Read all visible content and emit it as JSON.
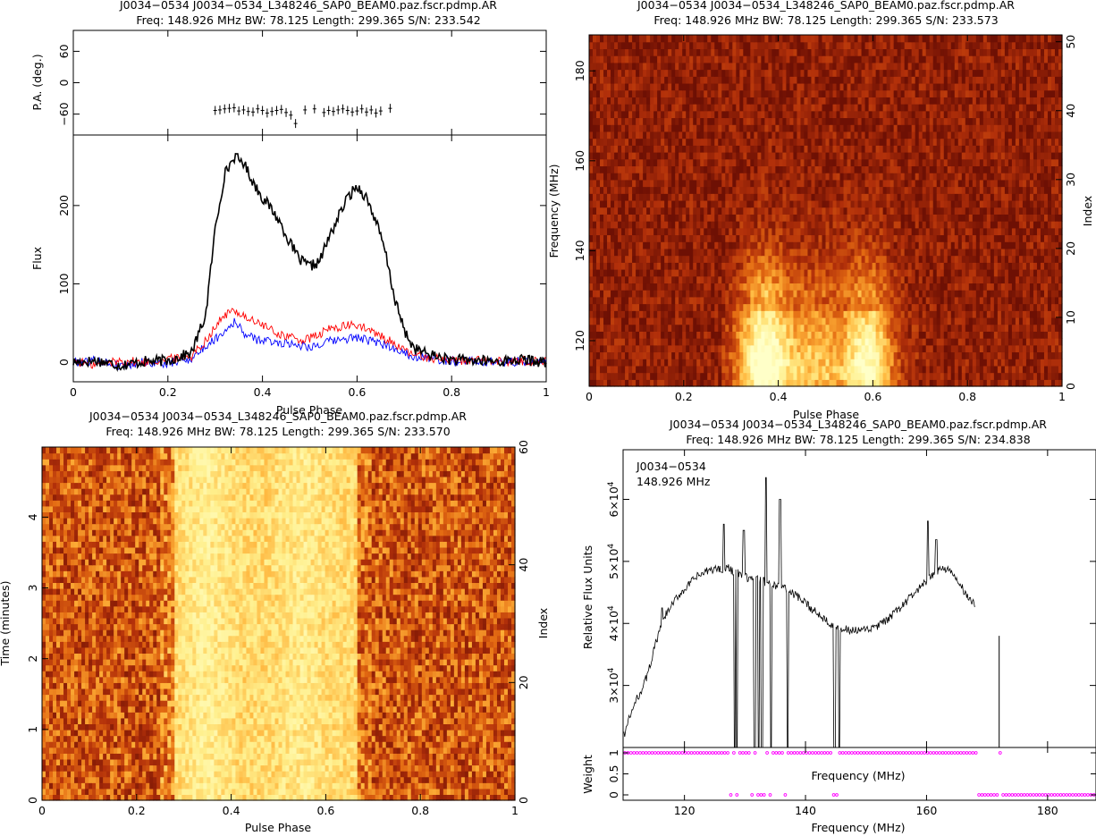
{
  "chart_data": [
    {
      "type": "line",
      "title": "J0034−0534  J0034−0534_L348246_SAP0_BEAM0.paz.fscr.pdmp.AR",
      "subtitle": "Freq:  148.926  MHz  BW:  78.125  Length:  299.365  S/N:  233.542",
      "xlabel": "Pulse Phase",
      "xlim": [
        0,
        1
      ],
      "x_ticks": [
        "0",
        "0.2",
        "0.4",
        "0.6",
        "0.8",
        "1"
      ],
      "pa_panel": {
        "ylabel": "P.A. (deg.)",
        "ylim": [
          -100,
          100
        ],
        "y_ticks": [
          "−60",
          "0",
          "60"
        ],
        "x": [
          0.3,
          0.31,
          0.32,
          0.33,
          0.34,
          0.35,
          0.36,
          0.37,
          0.38,
          0.39,
          0.4,
          0.41,
          0.42,
          0.43,
          0.44,
          0.45,
          0.46,
          0.47,
          0.49,
          0.51,
          0.53,
          0.54,
          0.55,
          0.56,
          0.57,
          0.58,
          0.59,
          0.6,
          0.61,
          0.62,
          0.63,
          0.64,
          0.65,
          0.67
        ],
        "values": [
          -53,
          -52,
          -50,
          -49,
          -48,
          -54,
          -52,
          -55,
          -56,
          -50,
          -53,
          -58,
          -55,
          -53,
          -51,
          -57,
          -62,
          -78,
          -52,
          -50,
          -57,
          -53,
          -55,
          -52,
          -50,
          -53,
          -56,
          -54,
          -50,
          -56,
          -52,
          -58,
          -54,
          -49
        ]
      },
      "flux_panel": {
        "ylabel": "Flux",
        "ylim": [
          -25,
          290
        ],
        "y_ticks": [
          "0",
          "100",
          "200"
        ],
        "x": [
          0,
          0.05,
          0.1,
          0.15,
          0.2,
          0.25,
          0.28,
          0.3,
          0.32,
          0.34,
          0.36,
          0.38,
          0.4,
          0.42,
          0.44,
          0.46,
          0.48,
          0.5,
          0.52,
          0.54,
          0.56,
          0.58,
          0.6,
          0.62,
          0.64,
          0.66,
          0.68,
          0.7,
          0.72,
          0.75,
          0.8,
          0.85,
          0.9,
          0.95,
          1
        ],
        "series": [
          {
            "color": "#000000",
            "values": [
              0,
              2,
              -4,
              1,
              2,
              12,
              60,
              170,
              240,
              262,
              255,
              230,
              210,
              195,
              175,
              150,
              130,
              122,
              128,
              158,
              185,
              210,
              225,
              210,
              180,
              140,
              80,
              40,
              18,
              10,
              3,
              2,
              1,
              3,
              0
            ]
          },
          {
            "color": "#ff0000",
            "values": [
              1,
              -3,
              2,
              0,
              4,
              8,
              28,
              45,
              60,
              66,
              60,
              52,
              48,
              40,
              35,
              32,
              28,
              30,
              35,
              42,
              45,
              46,
              48,
              42,
              36,
              30,
              24,
              14,
              10,
              6,
              3,
              2,
              1,
              2,
              1
            ]
          },
          {
            "color": "#0000ff",
            "values": [
              0,
              2,
              -5,
              0,
              -2,
              5,
              20,
              30,
              40,
              52,
              38,
              30,
              28,
              26,
              25,
              24,
              22,
              20,
              22,
              26,
              28,
              30,
              32,
              28,
              25,
              22,
              18,
              12,
              8,
              5,
              2,
              1,
              0,
              1,
              0
            ]
          }
        ]
      }
    },
    {
      "type": "heatmap",
      "title": "J0034−0534  J0034−0534_L348246_SAP0_BEAM0.paz.fscr.pdmp.AR",
      "subtitle": "Freq:  148.926  MHz  BW:  78.125  Length:  299.365  S/N:  233.573",
      "xlabel": "Pulse Phase",
      "ylabel": "Frequency (MHz)",
      "ylabel_right": "Index",
      "xlim": [
        0,
        1
      ],
      "ylim": [
        109.86,
        188
      ],
      "y_right_lim": [
        0,
        51
      ],
      "x_ticks": [
        "0",
        "0.2",
        "0.4",
        "0.6",
        "0.8",
        "1"
      ],
      "y_ticks": [
        "120",
        "140",
        "160",
        "180"
      ],
      "y_right_ticks": [
        "0",
        "10",
        "20",
        "30",
        "40",
        "50"
      ],
      "colormap": [
        "#6e1004",
        "#b2300a",
        "#e36a12",
        "#ffb43a",
        "#ffef8c",
        "#ffffc8"
      ]
    },
    {
      "type": "heatmap",
      "title": "J0034−0534  J0034−0534_L348246_SAP0_BEAM0.paz.fscr.pdmp.AR",
      "subtitle": "Freq:  148.926  MHz  BW:  78.125  Length:  299.365  S/N:  233.570",
      "xlabel": "Pulse Phase",
      "ylabel": "Time (minutes)",
      "ylabel_right": "Index",
      "xlim": [
        0,
        1
      ],
      "ylim": [
        0,
        4.99
      ],
      "y_right_lim": [
        0,
        60
      ],
      "x_ticks": [
        "0",
        "0.2",
        "0.4",
        "0.6",
        "0.8",
        "1"
      ],
      "y_ticks": [
        "0",
        "1",
        "2",
        "3",
        "4"
      ],
      "y_right_ticks": [
        "0",
        "20",
        "40",
        "60"
      ],
      "colormap": [
        "#6e1004",
        "#b2300a",
        "#e36a12",
        "#ffb43a",
        "#ffef8c",
        "#ffffc8"
      ]
    },
    {
      "type": "line",
      "title": "J0034−0534  J0034−0534_L348246_SAP0_BEAM0.paz.fscr.pdmp.AR",
      "subtitle": "Freq:  148.926  MHz  BW:  78.125  Length:  299.365  S/N:  234.838",
      "annotation_1": "J0034−0534",
      "annotation_2": "148.926 MHz",
      "xlabel_top": "Frequency (MHz)",
      "xlabel": "Frequency (MHz)",
      "ylabel": "Relative Flux Units",
      "weight_ylabel": "Weight",
      "xlim": [
        109.86,
        188
      ],
      "ylim": [
        20000,
        68000
      ],
      "x_ticks": [
        "120",
        "140",
        "160",
        "180"
      ],
      "y_ticks": [
        {
          "base": "3×10",
          "exp": "4"
        },
        {
          "base": "4×10",
          "exp": "4"
        },
        {
          "base": "5×10",
          "exp": "4"
        },
        {
          "base": "6×10",
          "exp": "4"
        }
      ],
      "weight_ticks": [
        "0",
        "0.5",
        "1"
      ],
      "bandpass": {
        "x": [
          110,
          111,
          112,
          113,
          114,
          115,
          116,
          117,
          118,
          119,
          120,
          121,
          122,
          123,
          124,
          125,
          126,
          127,
          128,
          129,
          130,
          131,
          132,
          133,
          134,
          135,
          136,
          137,
          138,
          139,
          140,
          141,
          142,
          143,
          144,
          145,
          146,
          147,
          148,
          149,
          150,
          151,
          152,
          153,
          154,
          155,
          156,
          157,
          158,
          159,
          160,
          161,
          162,
          163,
          164,
          165,
          166,
          167,
          168
        ],
        "values": [
          22000,
          25000,
          27500,
          29500,
          32000,
          36000,
          39000,
          41500,
          43000,
          44500,
          45500,
          46500,
          47500,
          48000,
          48500,
          48800,
          48800,
          49000,
          48500,
          48000,
          47500,
          47200,
          47000,
          46800,
          46500,
          46200,
          46000,
          45500,
          44800,
          44000,
          43200,
          42400,
          41600,
          40900,
          40200,
          39600,
          39200,
          38900,
          38800,
          38800,
          38900,
          39200,
          39600,
          40200,
          41000,
          41900,
          42900,
          43900,
          44900,
          45800,
          46700,
          47700,
          48700,
          49000,
          48200,
          47000,
          45500,
          44000,
          43000
        ]
      },
      "rfi_spikes": [
        {
          "x": 126.5,
          "y": 56000
        },
        {
          "x": 129.8,
          "y": 55000
        },
        {
          "x": 133.5,
          "y": 63500
        },
        {
          "x": 135.8,
          "y": 60000
        },
        {
          "x": 160.2,
          "y": 56500
        },
        {
          "x": 161.6,
          "y": 53500
        },
        {
          "x": 116.3,
          "y": 42500
        },
        {
          "x": 172.0,
          "y": 38000
        }
      ],
      "rfi_dips": [
        128.3,
        128.7,
        131.6,
        132.3,
        132.8,
        134.3,
        137.1,
        144.8,
        145.6,
        168.2
      ],
      "weights_zero_ranges": [
        [
          168.5,
          188
        ]
      ],
      "weights_zero_points": [
        127.8,
        128.5,
        131.4,
        132.0,
        132.5,
        133.0,
        134.2,
        136.9,
        144.7,
        145.4
      ]
    }
  ]
}
